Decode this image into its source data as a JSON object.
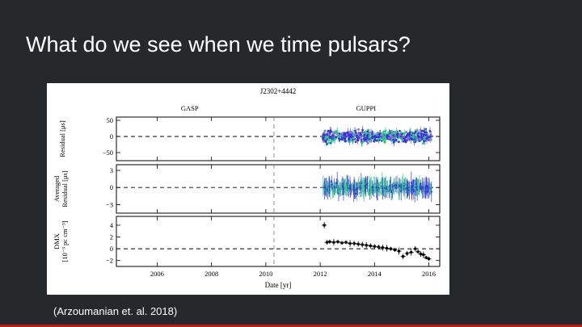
{
  "slide": {
    "title": "What do we see when we time pulsars?",
    "caption": "(Arzoumanian et. al. 2018)"
  },
  "colors": {
    "background": "#25292b",
    "accent_bar": "#b3221a",
    "series_a": "#3b2fe0",
    "series_b": "#22d07a",
    "series_c": "#8a6fd6"
  },
  "chart_data": {
    "type": "scatter",
    "title": "J2302+4442",
    "backend_labels": [
      "GASP",
      "GUPPI"
    ],
    "backend_split_year": 2010.3,
    "xlabel": "Date [yr]",
    "xlim": [
      2004.5,
      2016.4
    ],
    "x_ticks": [
      "2006",
      "2008",
      "2010",
      "2012",
      "2014",
      "2016"
    ],
    "grid": false,
    "panels": [
      {
        "id": "residual",
        "ylabel_lines": [
          "Residual [μs]"
        ],
        "ylim": [
          -75,
          60
        ],
        "y_ticks": [
          "50",
          "0",
          "−50"
        ],
        "y_tick_values": [
          50,
          0,
          -50
        ],
        "data_start": 2012.1,
        "data_end": 2016.1,
        "typical_scatter": 25
      },
      {
        "id": "averaged",
        "ylabel_lines": [
          "Averaged",
          "Residual [μs]"
        ],
        "ylim": [
          -4.5,
          4
        ],
        "y_ticks": [
          "3",
          "0",
          "−3"
        ],
        "y_tick_values": [
          3,
          0,
          -3
        ],
        "data_start": 2012.1,
        "data_end": 2016.1,
        "typical_scatter": 1.5
      },
      {
        "id": "dmx",
        "ylabel_lines": [
          "DMX",
          "[10⁻³ pc cm⁻³]"
        ],
        "ylim": [
          -3,
          5.5
        ],
        "y_ticks": [
          "4",
          "2",
          "0",
          "−2"
        ],
        "y_tick_values": [
          4,
          2,
          0,
          -2
        ],
        "points": [
          [
            2012.15,
            4.0
          ],
          [
            2012.25,
            1.1
          ],
          [
            2012.35,
            1.2
          ],
          [
            2012.5,
            1.1
          ],
          [
            2012.65,
            1.2
          ],
          [
            2012.8,
            1.0
          ],
          [
            2012.95,
            1.1
          ],
          [
            2013.1,
            0.9
          ],
          [
            2013.25,
            0.9
          ],
          [
            2013.4,
            0.8
          ],
          [
            2013.55,
            0.7
          ],
          [
            2013.7,
            0.6
          ],
          [
            2013.85,
            0.5
          ],
          [
            2014.0,
            0.4
          ],
          [
            2014.15,
            0.3
          ],
          [
            2014.3,
            0.2
          ],
          [
            2014.45,
            0.1
          ],
          [
            2014.6,
            0.0
          ],
          [
            2014.75,
            -0.2
          ],
          [
            2014.9,
            -0.4
          ],
          [
            2015.05,
            -1.3
          ],
          [
            2015.2,
            -0.8
          ],
          [
            2015.35,
            -0.6
          ],
          [
            2015.5,
            0.0
          ],
          [
            2015.6,
            -0.5
          ],
          [
            2015.7,
            -0.9
          ],
          [
            2015.8,
            -1.0
          ],
          [
            2015.9,
            -1.5
          ],
          [
            2016.0,
            -1.7
          ]
        ]
      }
    ]
  }
}
